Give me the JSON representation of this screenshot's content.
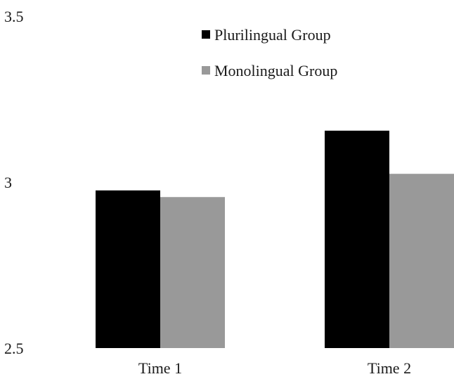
{
  "chart_data": {
    "type": "bar",
    "title": "",
    "xlabel": "",
    "ylabel": "",
    "categories": [
      "Time 1",
      "Time 2"
    ],
    "series": [
      {
        "name": "Plurilingual Group",
        "color": "#000000",
        "values": [
          2.975,
          3.155
        ]
      },
      {
        "name": "Monolingual Group",
        "color": "#999999",
        "values": [
          2.955,
          3.025
        ]
      }
    ],
    "ylim": [
      2.5,
      3.5
    ],
    "yticks": [
      "2.5",
      "3",
      "3.5"
    ],
    "grid": false,
    "legend_position": "top-center"
  }
}
